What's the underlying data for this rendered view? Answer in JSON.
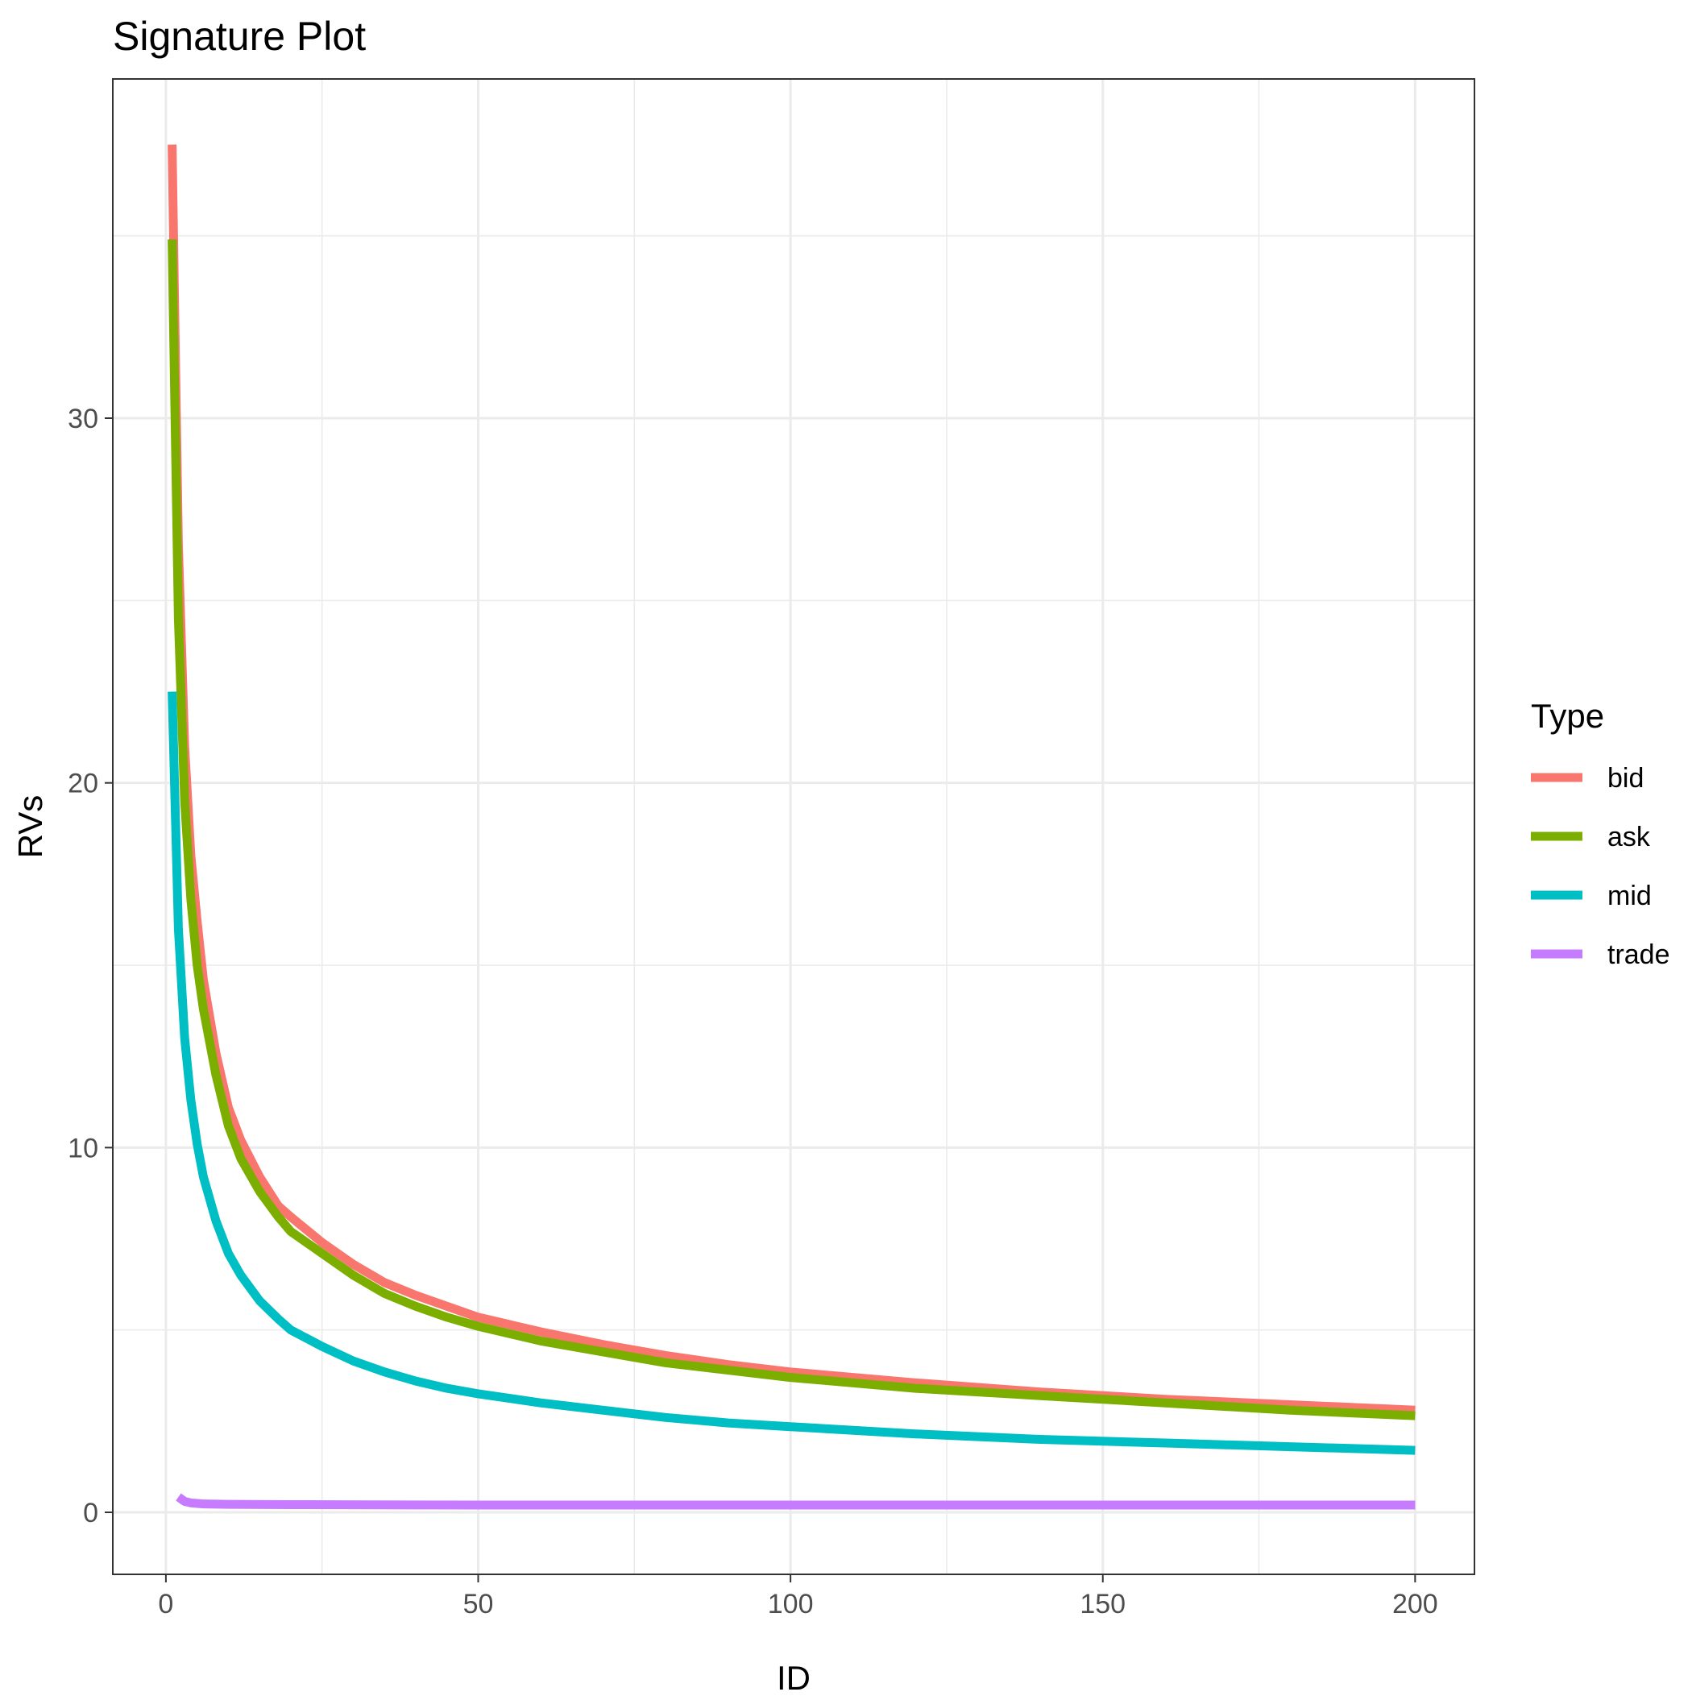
{
  "chart_data": {
    "type": "line",
    "title": "Signature Plot",
    "xlabel": "ID",
    "ylabel": "RVs",
    "xlim": [
      -8.5,
      209.5
    ],
    "ylim": [
      -1.7,
      39.3
    ],
    "x_ticks": [
      0,
      50,
      100,
      150,
      200
    ],
    "x_tick_labels": [
      "0",
      "50",
      "100",
      "150",
      "200"
    ],
    "x_minor_ticks": [
      25,
      75,
      125,
      175
    ],
    "y_ticks": [
      0,
      10,
      20,
      30
    ],
    "y_tick_labels": [
      "0",
      "10",
      "20",
      "30"
    ],
    "y_minor_ticks": [
      5,
      15,
      25,
      35
    ],
    "grid": true,
    "legend": {
      "title": "Type",
      "position": "right"
    },
    "series": [
      {
        "name": "bid",
        "color": "#f8766d",
        "x": [
          1,
          2,
          3,
          4,
          5,
          6,
          8,
          10,
          12,
          15,
          18,
          20,
          25,
          30,
          35,
          40,
          45,
          50,
          60,
          70,
          80,
          90,
          100,
          120,
          140,
          160,
          180,
          200
        ],
        "y": [
          37.5,
          26.5,
          21.0,
          18.0,
          16.2,
          14.6,
          12.6,
          11.1,
          10.2,
          9.2,
          8.4,
          8.1,
          7.4,
          6.8,
          6.3,
          5.95,
          5.65,
          5.35,
          4.95,
          4.6,
          4.3,
          4.05,
          3.85,
          3.55,
          3.3,
          3.1,
          2.95,
          2.8
        ]
      },
      {
        "name": "ask",
        "color": "#7cae00",
        "x": [
          1,
          2,
          3,
          4,
          5,
          6,
          8,
          10,
          12,
          15,
          18,
          20,
          25,
          30,
          35,
          40,
          45,
          50,
          60,
          70,
          80,
          90,
          100,
          120,
          140,
          160,
          180,
          200
        ],
        "y": [
          34.9,
          24.5,
          19.5,
          16.8,
          15.0,
          13.8,
          12.0,
          10.6,
          9.7,
          8.8,
          8.1,
          7.7,
          7.1,
          6.5,
          6.0,
          5.65,
          5.35,
          5.1,
          4.7,
          4.4,
          4.1,
          3.9,
          3.7,
          3.4,
          3.2,
          3.0,
          2.8,
          2.65
        ]
      },
      {
        "name": "mid",
        "color": "#00bfc4",
        "x": [
          1,
          2,
          3,
          4,
          5,
          6,
          8,
          10,
          12,
          15,
          18,
          20,
          25,
          30,
          35,
          40,
          45,
          50,
          60,
          70,
          80,
          90,
          100,
          120,
          140,
          160,
          180,
          200
        ],
        "y": [
          22.5,
          16.0,
          13.0,
          11.3,
          10.1,
          9.2,
          8.0,
          7.1,
          6.5,
          5.8,
          5.3,
          5.0,
          4.55,
          4.15,
          3.85,
          3.6,
          3.4,
          3.25,
          3.0,
          2.8,
          2.6,
          2.45,
          2.35,
          2.15,
          2.0,
          1.9,
          1.8,
          1.7
        ]
      },
      {
        "name": "trade",
        "color": "#c77cff",
        "x": [
          2,
          3,
          4,
          6,
          10,
          20,
          50,
          100,
          150,
          200
        ],
        "y": [
          0.42,
          0.3,
          0.26,
          0.23,
          0.22,
          0.21,
          0.2,
          0.2,
          0.2,
          0.2
        ]
      }
    ]
  }
}
